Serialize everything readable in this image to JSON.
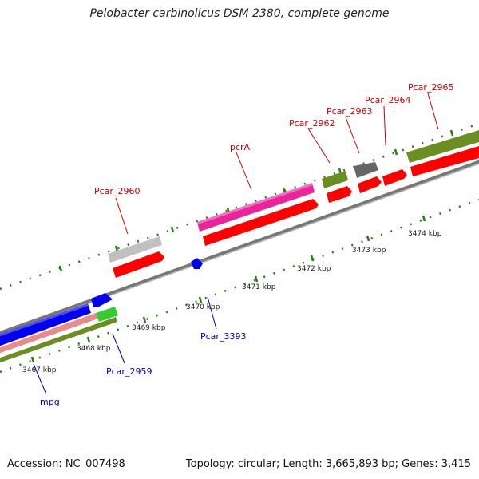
{
  "title": "Pelobacter carbinolicus DSM 2380, complete genome",
  "footer": {
    "accession": "Accession: NC_007498",
    "summary": "Topology: circular; Length: 3,665,893 bp; Genes: 3,415"
  },
  "colors": {
    "backbone": "#8a8a8a",
    "tick": "#2a7d1a",
    "label_top": "#cc0000",
    "label_bottom": "#0000bb"
  },
  "kbp_labels": [
    "3467 kbp",
    "3468 kbp",
    "3469 kbp",
    "3470 kbp",
    "3471 kbp",
    "3472 kbp",
    "3473 kbp",
    "3474 kbp"
  ],
  "genes_top": [
    {
      "name": "Pcar_2960",
      "color": "#c0c0c0"
    },
    {
      "name": "pcrA",
      "color": "#e8259a"
    },
    {
      "name": "Pcar_2962",
      "color": "#6b8e23"
    },
    {
      "name": "Pcar_2963",
      "color": "#666666"
    },
    {
      "name": "Pcar_2964",
      "color": "#ff2020"
    },
    {
      "name": "Pcar_2965",
      "color": "#6b8e23"
    }
  ],
  "genes_bottom": [
    {
      "name": "Pcar_3393",
      "color": "#0000ee"
    },
    {
      "name": "Pcar_2959",
      "color": "#33cc33"
    },
    {
      "name": "mpg",
      "color": "#0000ee"
    }
  ],
  "cds_color": "#ff0000"
}
